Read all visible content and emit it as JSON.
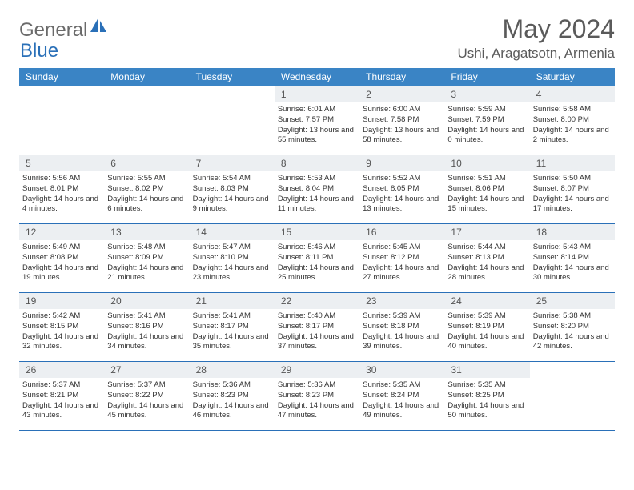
{
  "brand": {
    "part1": "General",
    "part2": "Blue"
  },
  "title": "May 2024",
  "location": "Ushi, Aragatsotn, Armenia",
  "colors": {
    "header_bg": "#3a84c5",
    "border": "#2a70b8",
    "daynum_bg": "#eceff2",
    "text_muted": "#5a5a5a",
    "brand_gray": "#6a6a6a",
    "brand_blue": "#2a70b8"
  },
  "day_headers": [
    "Sunday",
    "Monday",
    "Tuesday",
    "Wednesday",
    "Thursday",
    "Friday",
    "Saturday"
  ],
  "weeks": [
    [
      null,
      null,
      null,
      {
        "n": "1",
        "sr": "6:01 AM",
        "ss": "7:57 PM",
        "dl": "13 hours and 55 minutes."
      },
      {
        "n": "2",
        "sr": "6:00 AM",
        "ss": "7:58 PM",
        "dl": "13 hours and 58 minutes."
      },
      {
        "n": "3",
        "sr": "5:59 AM",
        "ss": "7:59 PM",
        "dl": "14 hours and 0 minutes."
      },
      {
        "n": "4",
        "sr": "5:58 AM",
        "ss": "8:00 PM",
        "dl": "14 hours and 2 minutes."
      }
    ],
    [
      {
        "n": "5",
        "sr": "5:56 AM",
        "ss": "8:01 PM",
        "dl": "14 hours and 4 minutes."
      },
      {
        "n": "6",
        "sr": "5:55 AM",
        "ss": "8:02 PM",
        "dl": "14 hours and 6 minutes."
      },
      {
        "n": "7",
        "sr": "5:54 AM",
        "ss": "8:03 PM",
        "dl": "14 hours and 9 minutes."
      },
      {
        "n": "8",
        "sr": "5:53 AM",
        "ss": "8:04 PM",
        "dl": "14 hours and 11 minutes."
      },
      {
        "n": "9",
        "sr": "5:52 AM",
        "ss": "8:05 PM",
        "dl": "14 hours and 13 minutes."
      },
      {
        "n": "10",
        "sr": "5:51 AM",
        "ss": "8:06 PM",
        "dl": "14 hours and 15 minutes."
      },
      {
        "n": "11",
        "sr": "5:50 AM",
        "ss": "8:07 PM",
        "dl": "14 hours and 17 minutes."
      }
    ],
    [
      {
        "n": "12",
        "sr": "5:49 AM",
        "ss": "8:08 PM",
        "dl": "14 hours and 19 minutes."
      },
      {
        "n": "13",
        "sr": "5:48 AM",
        "ss": "8:09 PM",
        "dl": "14 hours and 21 minutes."
      },
      {
        "n": "14",
        "sr": "5:47 AM",
        "ss": "8:10 PM",
        "dl": "14 hours and 23 minutes."
      },
      {
        "n": "15",
        "sr": "5:46 AM",
        "ss": "8:11 PM",
        "dl": "14 hours and 25 minutes."
      },
      {
        "n": "16",
        "sr": "5:45 AM",
        "ss": "8:12 PM",
        "dl": "14 hours and 27 minutes."
      },
      {
        "n": "17",
        "sr": "5:44 AM",
        "ss": "8:13 PM",
        "dl": "14 hours and 28 minutes."
      },
      {
        "n": "18",
        "sr": "5:43 AM",
        "ss": "8:14 PM",
        "dl": "14 hours and 30 minutes."
      }
    ],
    [
      {
        "n": "19",
        "sr": "5:42 AM",
        "ss": "8:15 PM",
        "dl": "14 hours and 32 minutes."
      },
      {
        "n": "20",
        "sr": "5:41 AM",
        "ss": "8:16 PM",
        "dl": "14 hours and 34 minutes."
      },
      {
        "n": "21",
        "sr": "5:41 AM",
        "ss": "8:17 PM",
        "dl": "14 hours and 35 minutes."
      },
      {
        "n": "22",
        "sr": "5:40 AM",
        "ss": "8:17 PM",
        "dl": "14 hours and 37 minutes."
      },
      {
        "n": "23",
        "sr": "5:39 AM",
        "ss": "8:18 PM",
        "dl": "14 hours and 39 minutes."
      },
      {
        "n": "24",
        "sr": "5:39 AM",
        "ss": "8:19 PM",
        "dl": "14 hours and 40 minutes."
      },
      {
        "n": "25",
        "sr": "5:38 AM",
        "ss": "8:20 PM",
        "dl": "14 hours and 42 minutes."
      }
    ],
    [
      {
        "n": "26",
        "sr": "5:37 AM",
        "ss": "8:21 PM",
        "dl": "14 hours and 43 minutes."
      },
      {
        "n": "27",
        "sr": "5:37 AM",
        "ss": "8:22 PM",
        "dl": "14 hours and 45 minutes."
      },
      {
        "n": "28",
        "sr": "5:36 AM",
        "ss": "8:23 PM",
        "dl": "14 hours and 46 minutes."
      },
      {
        "n": "29",
        "sr": "5:36 AM",
        "ss": "8:23 PM",
        "dl": "14 hours and 47 minutes."
      },
      {
        "n": "30",
        "sr": "5:35 AM",
        "ss": "8:24 PM",
        "dl": "14 hours and 49 minutes."
      },
      {
        "n": "31",
        "sr": "5:35 AM",
        "ss": "8:25 PM",
        "dl": "14 hours and 50 minutes."
      },
      null
    ]
  ],
  "labels": {
    "sunrise": "Sunrise:",
    "sunset": "Sunset:",
    "daylight": "Daylight:"
  }
}
